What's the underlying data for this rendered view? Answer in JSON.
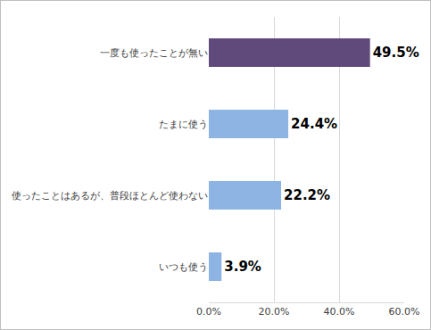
{
  "chart_data": {
    "type": "bar",
    "orientation": "horizontal",
    "categories": [
      "一度も使ったことが無い",
      "たまに使う",
      "使ったことはあるが、普段ほとんど使わない",
      "いつも使う"
    ],
    "values": [
      49.5,
      24.4,
      22.2,
      3.9
    ],
    "value_labels": [
      "49.5%",
      "24.4%",
      "22.2%",
      "3.9%"
    ],
    "colors": [
      "#604a7b",
      "#8eb4e3",
      "#8eb4e3",
      "#8eb4e3"
    ],
    "xlim": [
      0,
      60
    ],
    "xticks": [
      {
        "value": 0,
        "label": "0.0%"
      },
      {
        "value": 20,
        "label": "20.0%"
      },
      {
        "value": 40,
        "label": "40.0%"
      },
      {
        "value": 60,
        "label": "60.0%"
      }
    ],
    "grid": true,
    "data_labels": true
  }
}
